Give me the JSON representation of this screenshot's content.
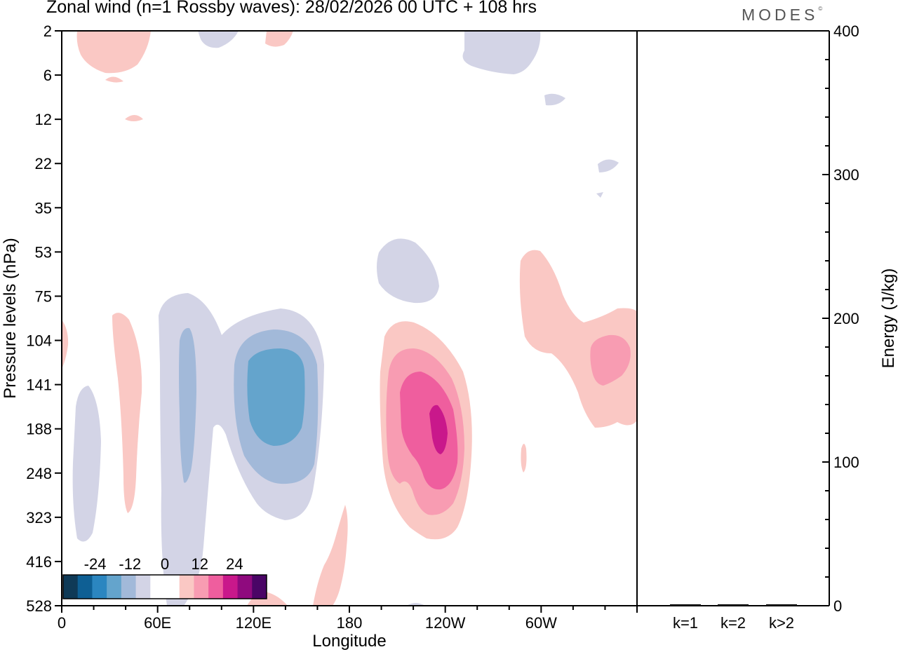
{
  "title": "Zonal wind (n=1 Rossby waves):  28/02/2026  00 UTC  + 108 hrs",
  "logo": "MODES",
  "logo_mark": "©",
  "chart_data": [
    {
      "type": "heatmap",
      "title": "Zonal wind (n=1 Rossby waves):  28/02/2026  00 UTC  + 108 hrs",
      "xlabel": "Longitude",
      "ylabel": "Pressure levels (hPa)",
      "x_ticks": [
        "0",
        "60E",
        "120E",
        "180",
        "120W",
        "60W"
      ],
      "y_ticks": [
        "2",
        "6",
        "12",
        "22",
        "35",
        "53",
        "75",
        "104",
        "141",
        "188",
        "248",
        "323",
        "416",
        "528"
      ],
      "colorbar": {
        "tick_labels": [
          "-24",
          "-12",
          "0",
          "12",
          "24"
        ],
        "levels": [
          -30,
          -25,
          -20,
          -15,
          -10,
          -5,
          0,
          5,
          10,
          15,
          20,
          25,
          30
        ],
        "colors": [
          "#0f3a57",
          "#0e5f94",
          "#2b86c0",
          "#64a4cc",
          "#a2b9d9",
          "#d3d4e6",
          "#ffffff",
          "#ffffff",
          "#fac8c4",
          "#f89cb2",
          "#ef5e9e",
          "#c9188b",
          "#8f0a7e",
          "#4a0566"
        ]
      },
      "features": [
        {
          "label": "negative anomaly",
          "lon": 125,
          "pressure_hPa": 141,
          "value": -14
        },
        {
          "label": "positive anomaly",
          "lon": 242,
          "pressure_hPa": 188,
          "value": 18
        },
        {
          "label": "positive anomaly",
          "lon": 340,
          "pressure_hPa": 130,
          "value": 8
        }
      ]
    },
    {
      "type": "bar",
      "categories": [
        "k=1",
        "k=2",
        "k>2"
      ],
      "values": [
        0.6,
        0.3,
        0.6
      ],
      "ylabel": "Energy (J/kg)",
      "ylim": [
        0,
        400
      ],
      "y_ticks": [
        "0",
        "100",
        "200",
        "300",
        "400"
      ]
    }
  ]
}
